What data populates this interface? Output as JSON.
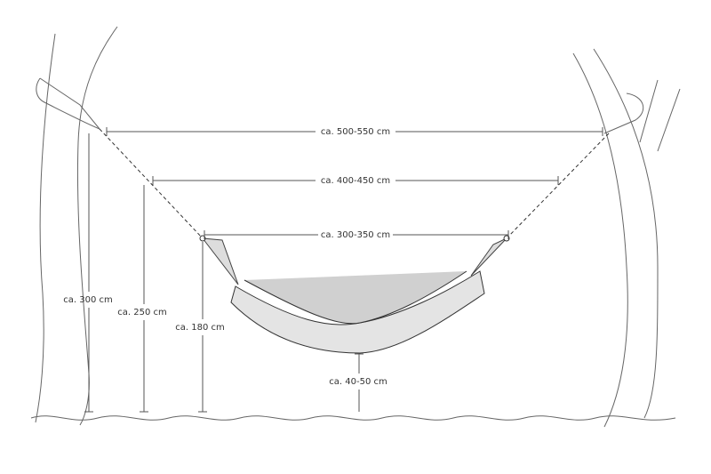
{
  "dimensions": {
    "horizontal": [
      "ca. 500-550 cm",
      "ca. 400-450 cm",
      "ca. 300-350 cm"
    ],
    "vertical": [
      "ca. 300 cm",
      "ca. 250 cm",
      "ca. 180 cm",
      "ca. 40-50 cm"
    ]
  }
}
